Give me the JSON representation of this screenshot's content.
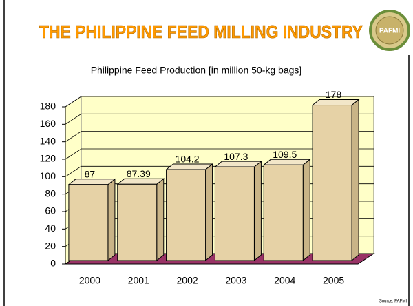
{
  "chart_data": {
    "type": "bar3d",
    "title": "THE PHILIPPINE FEED MILLING INDUSTRY",
    "subtitle": "Philippine Feed Production [in million 50-kg bags]",
    "categories": [
      "2000",
      "2001",
      "2002",
      "2003",
      "2004",
      "2005"
    ],
    "values": [
      87,
      87.39,
      104.2,
      107.3,
      109.5,
      178
    ],
    "color": "#e6d2a6",
    "ylim": [
      0,
      180
    ],
    "yticks": [
      0,
      20,
      40,
      60,
      80,
      100,
      120,
      140,
      160,
      180
    ],
    "grid": true,
    "source": "Source: PAFMI",
    "logo_text": "PAFMI"
  }
}
